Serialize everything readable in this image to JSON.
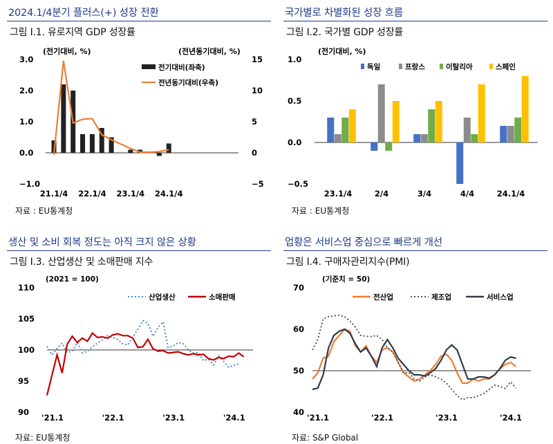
{
  "panels": [
    {
      "section_title": "2024.1/4분기 플러스(+) 성장 전환",
      "figure_title": "그림 Ⅰ.1. 유로지역 GDP 성장률",
      "source": "자료 : EU통계청"
    },
    {
      "section_title": "국가별로 차별화된 성장 흐름",
      "figure_title": "그림 Ⅰ.2. 국가별 GDP 성장률",
      "source": "자료 : EU통계청"
    },
    {
      "section_title": "생산 및 소비 회복 정도는 아직 크지 않은 상황",
      "figure_title": "그림 Ⅰ.3. 산업생산 및 소매판매 지수",
      "source": "자료: EU통계청"
    },
    {
      "section_title": "업황은 서비스업 중심으로 빠르게 개선",
      "figure_title": "그림 Ⅰ.4. 구매자관리지수(PMI)",
      "source": "자료: S&P Global"
    }
  ],
  "chart_data": [
    {
      "type": "bar",
      "ylabel_left": "(전기대비, %)",
      "ylabel_right": "(전년동기대비, %)",
      "y_ticks_left": [
        "3.0",
        "2.0",
        "1.0",
        "0.0",
        "−1.0"
      ],
      "y_ticks_right": [
        "15",
        "10",
        "5",
        "0",
        "−5"
      ],
      "ylim_left": [
        -1,
        3
      ],
      "ylim_right": [
        -5,
        15
      ],
      "x_tick_labels": [
        "21.1/4",
        "22.1/4",
        "23.1/4",
        "24.1/4"
      ],
      "x_tick_positions": [
        0,
        4,
        8,
        12
      ],
      "legend_position": "top-right",
      "colors": {
        "bar": "#222222",
        "line": "#ed7d31"
      },
      "series": [
        {
          "name": "전기대비(좌축)",
          "type": "bar",
          "values": [
            0.4,
            2.2,
            2.0,
            0.6,
            0.6,
            0.8,
            0.5,
            0.0,
            0.1,
            0.1,
            0.0,
            -0.1,
            0.3
          ]
        },
        {
          "name": "전년동기대비(우축)",
          "type": "line",
          "values": [
            -0.3,
            14.8,
            4.8,
            5.4,
            5.5,
            2.9,
            2.1,
            1.4,
            0.7,
            0.1,
            0.1,
            0.2,
            0.5
          ]
        }
      ]
    },
    {
      "type": "bar",
      "ylabel": "(전기대비, %)",
      "y_ticks": [
        "1.0",
        "0.5",
        "0.0",
        "−0.5"
      ],
      "ylim": [
        -0.5,
        1.0
      ],
      "categories": [
        "23.1/4",
        "2/4",
        "3/4",
        "4/4",
        "24.1/4"
      ],
      "legend_position": "top",
      "series": [
        {
          "name": "독일",
          "color": "#4472c4",
          "values": [
            0.3,
            -0.1,
            0.1,
            -0.5,
            0.2
          ]
        },
        {
          "name": "프랑스",
          "color": "#8c8c8c",
          "values": [
            0.1,
            0.7,
            0.1,
            0.3,
            0.2
          ]
        },
        {
          "name": "이탈리아",
          "color": "#70ad47",
          "values": [
            0.3,
            -0.1,
            0.4,
            0.1,
            0.3
          ]
        },
        {
          "name": "스페인",
          "color": "#ffc000",
          "values": [
            0.4,
            0.5,
            0.5,
            0.7,
            0.8
          ]
        }
      ]
    },
    {
      "type": "line",
      "note": "(2021 = 100)",
      "y_ticks": [
        "110",
        "105",
        "100",
        "95",
        "90"
      ],
      "ylim": [
        90,
        110
      ],
      "reference_line": 100,
      "x_tick_labels": [
        "'21.1",
        "'22.1",
        "'23.1",
        "'24.1"
      ],
      "x_tick_positions": [
        0,
        12,
        24,
        36
      ],
      "legend_position": "top-right",
      "series": [
        {
          "name": "산업생산",
          "color": "#4a86c8",
          "style": "dotted",
          "values": [
            100.6,
            99.2,
            100.2,
            101.1,
            99.6,
            99.8,
            101.2,
            99.5,
            99.8,
            100.5,
            101.1,
            101.6,
            102.3,
            102.0,
            101.7,
            101.0,
            100.8,
            102.1,
            103.3,
            104.7,
            104.3,
            102.2,
            103.6,
            104.5,
            100.4,
            100.6,
            101.2,
            101.0,
            100.0,
            99.5,
            99.6,
            98.3,
            98.5,
            97.6,
            99.0,
            98.2,
            97.2,
            97.5,
            97.8
          ]
        },
        {
          "name": "소매판매",
          "color": "#c00000",
          "style": "solid",
          "values": [
            92.7,
            96.0,
            99.2,
            96.3,
            100.9,
            102.2,
            101.2,
            101.9,
            101.4,
            102.7,
            102.0,
            102.1,
            101.9,
            102.4,
            102.6,
            102.3,
            102.3,
            101.9,
            100.4,
            100.5,
            101.7,
            100.2,
            99.8,
            99.9,
            99.5,
            99.6,
            99.7,
            99.4,
            99.2,
            99.4,
            99.2,
            99.3,
            98.6,
            98.4,
            98.8,
            98.6,
            99.0,
            98.9,
            99.5,
            98.9
          ]
        }
      ]
    },
    {
      "type": "line",
      "note": "(기준치 = 50)",
      "y_ticks": [
        "70",
        "60",
        "50",
        "40"
      ],
      "ylim": [
        40,
        70
      ],
      "reference_line": 50,
      "x_tick_labels": [
        "'21.1",
        "'22.1",
        "'23.1",
        "'24.1"
      ],
      "x_tick_positions": [
        0,
        12,
        24,
        36
      ],
      "legend_position": "top",
      "series": [
        {
          "name": "전산업",
          "color": "#ed7d31",
          "style": "solid",
          "values": [
            48,
            49.5,
            53,
            53.5,
            57,
            58.5,
            60,
            59.5,
            56,
            54.5,
            56,
            53.5,
            52,
            55,
            55.5,
            54.5,
            52,
            49.5,
            48.5,
            47.5,
            48,
            49,
            50,
            51.5,
            53.5,
            54,
            52.5,
            49.5,
            47,
            47,
            48,
            47.5,
            48,
            48,
            49,
            50.5,
            51.5,
            52,
            51
          ]
        },
        {
          "name": "제조업",
          "color": "#555555",
          "style": "dotted",
          "values": [
            55,
            57.5,
            62.5,
            63,
            63.2,
            63.4,
            63,
            62,
            60.5,
            58.5,
            58.3,
            58.2,
            58.5,
            57.5,
            55.5,
            54.5,
            52,
            49.5,
            49.5,
            48,
            47.5,
            48.5,
            49,
            48.5,
            48,
            47,
            45.5,
            44,
            43,
            43.5,
            43.5,
            44,
            44.5,
            45.5,
            46.5,
            46.2,
            45.7,
            47.3,
            45.8
          ]
        },
        {
          "name": "서비스업",
          "color": "#2e3b4e",
          "style": "solid",
          "values": [
            45.5,
            45.8,
            49,
            55.5,
            58.5,
            59.5,
            60,
            59,
            56.5,
            54.5,
            55.5,
            53.5,
            51,
            55.5,
            57.5,
            55.5,
            53,
            51.5,
            50,
            49,
            49,
            48.7,
            49.5,
            50.5,
            52.5,
            55,
            56.2,
            55,
            51.5,
            48,
            48,
            48.5,
            48.5,
            48.2,
            49,
            50.5,
            52.5,
            53.3,
            53
          ]
        }
      ]
    }
  ]
}
